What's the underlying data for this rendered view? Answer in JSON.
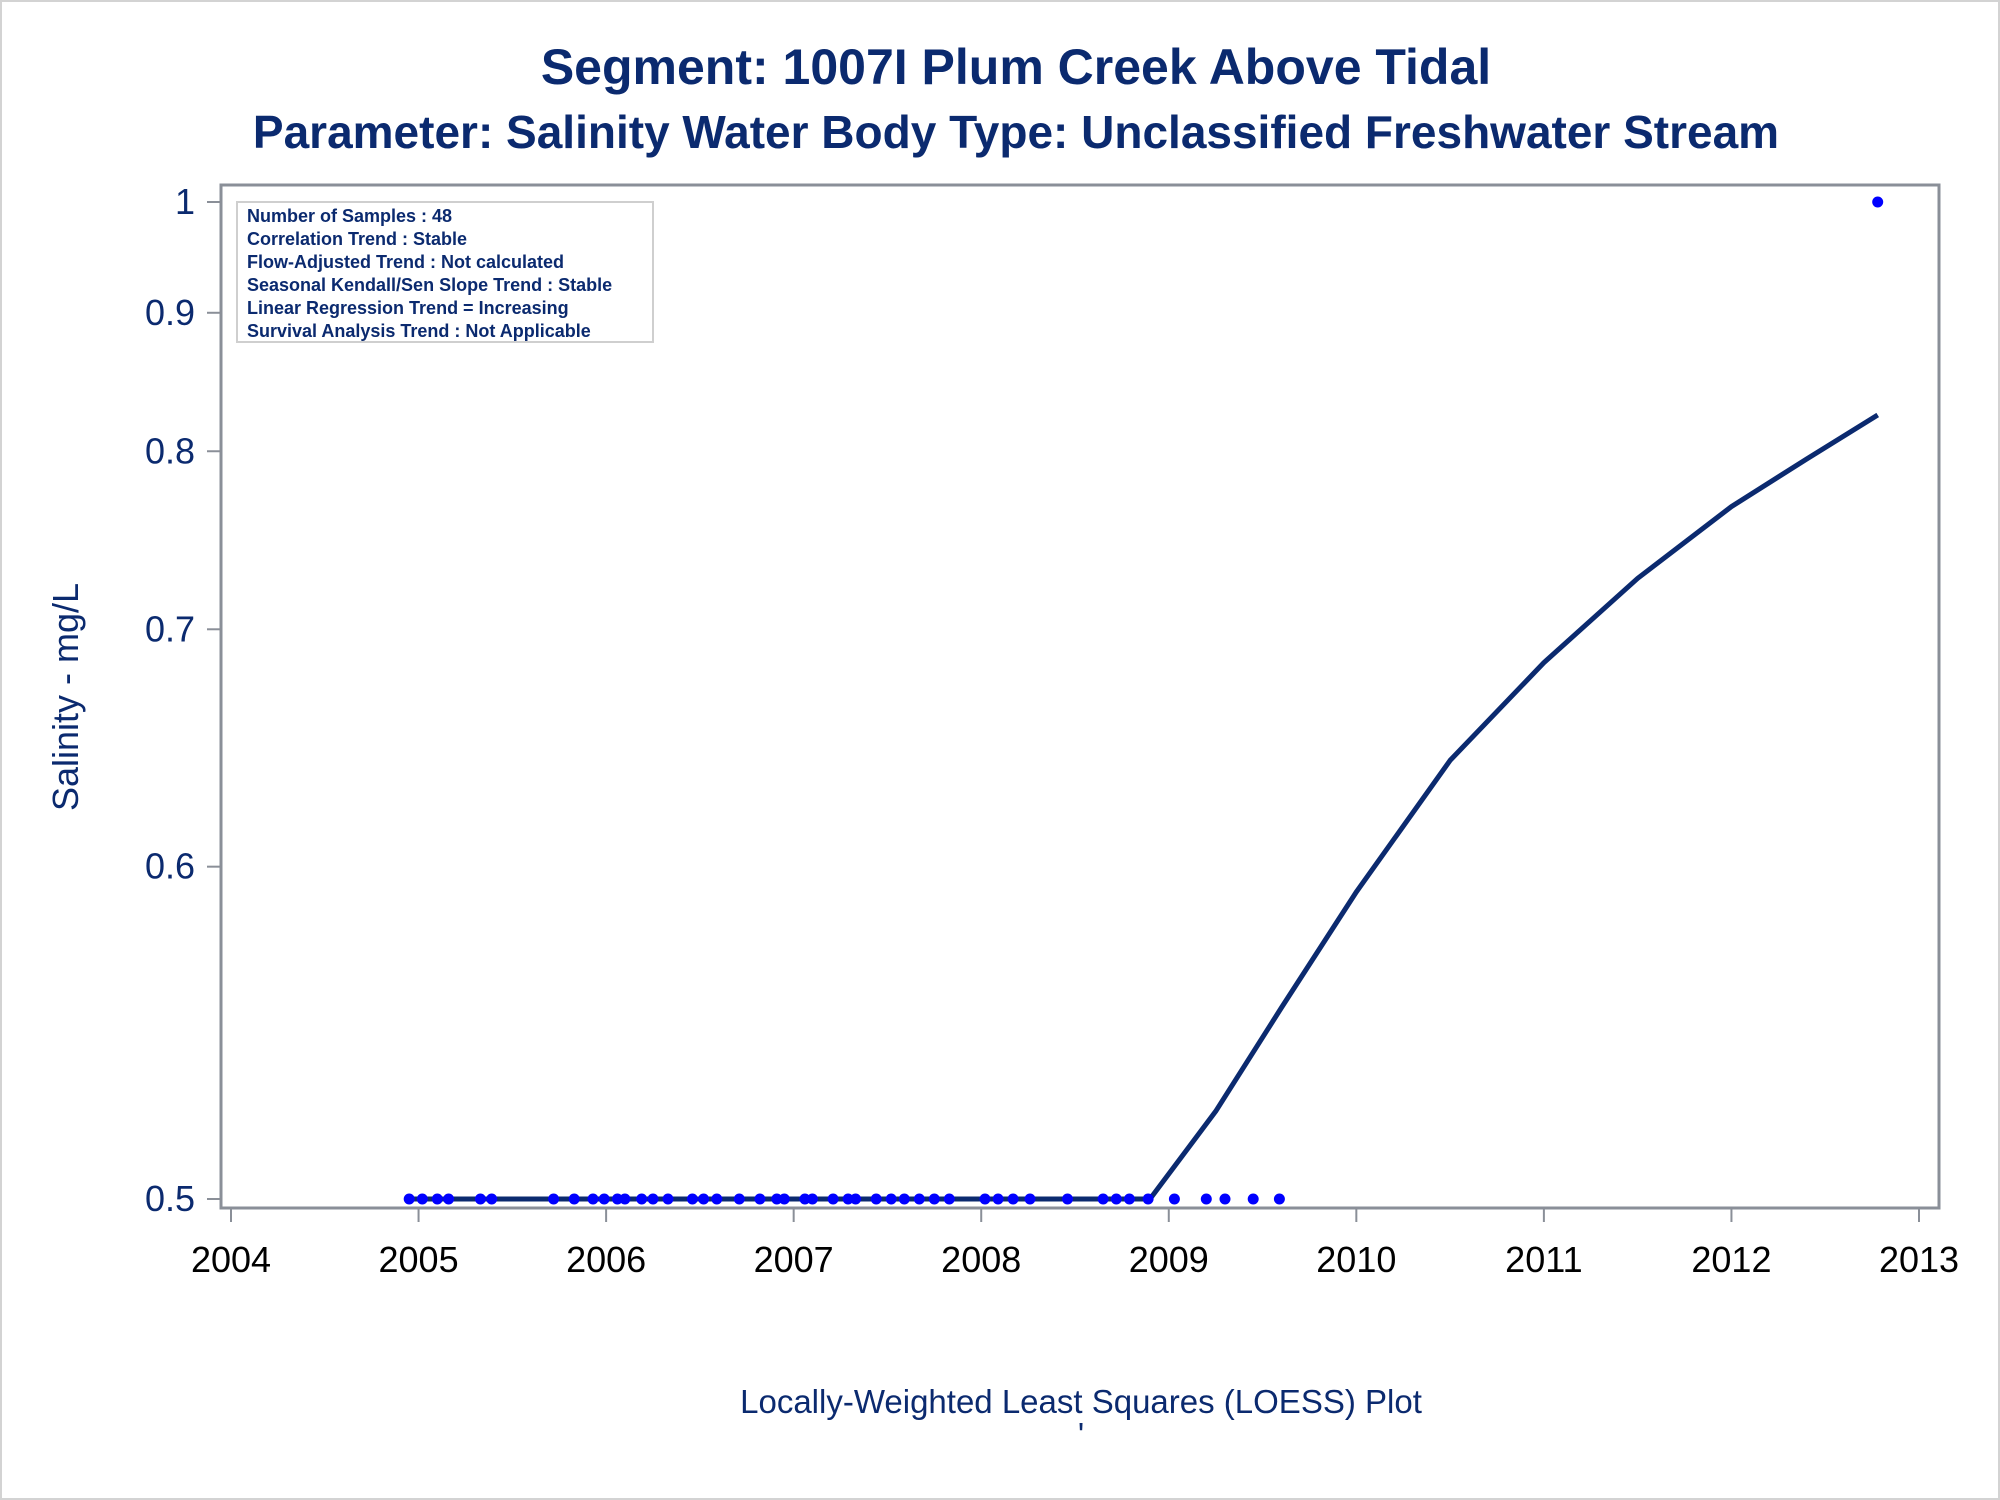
{
  "chart_data": {
    "type": "scatter",
    "title": "Segment: 1007I  Plum Creek Above Tidal",
    "subtitle": "Parameter: Salinity   Water Body Type: Unclassified Freshwater Stream",
    "xlabel": "Locally-Weighted Least Squares (LOESS) Plot",
    "ylabel": "Salinity - mg/L",
    "footnote": "'",
    "x_ticks": [
      "2004",
      "2005",
      "2006",
      "2007",
      "2008",
      "2009",
      "2010",
      "2011",
      "2012",
      "2013"
    ],
    "y_ticks": [
      "0.5",
      "0.6",
      "0.7",
      "0.8",
      "0.9",
      "1"
    ],
    "x_range": [
      2004,
      2013
    ],
    "y_range": [
      0.5,
      1.0
    ],
    "y_scale": "reciprocal",
    "legend_placement": "top-left",
    "grid": false,
    "stats_box": [
      "Number of Samples : 48",
      "Correlation Trend : Stable",
      "Flow-Adjusted Trend : Not calculated",
      "Seasonal Kendall/Sen Slope Trend : Stable",
      "Linear Regression Trend = Increasing",
      "Survival Analysis Trend : Not Applicable"
    ],
    "series": [
      {
        "type": "scatter",
        "color": "#0000ff",
        "points": [
          [
            2004.95,
            0.5
          ],
          [
            2005.02,
            0.5
          ],
          [
            2005.1,
            0.5
          ],
          [
            2005.16,
            0.5
          ],
          [
            2005.33,
            0.5
          ],
          [
            2005.39,
            0.5
          ],
          [
            2005.72,
            0.5
          ],
          [
            2005.83,
            0.5
          ],
          [
            2005.93,
            0.5
          ],
          [
            2005.99,
            0.5
          ],
          [
            2006.06,
            0.5
          ],
          [
            2006.1,
            0.5
          ],
          [
            2006.19,
            0.5
          ],
          [
            2006.25,
            0.5
          ],
          [
            2006.33,
            0.5
          ],
          [
            2006.46,
            0.5
          ],
          [
            2006.52,
            0.5
          ],
          [
            2006.59,
            0.5
          ],
          [
            2006.71,
            0.5
          ],
          [
            2006.82,
            0.5
          ],
          [
            2006.91,
            0.5
          ],
          [
            2006.95,
            0.5
          ],
          [
            2007.06,
            0.5
          ],
          [
            2007.1,
            0.5
          ],
          [
            2007.21,
            0.5
          ],
          [
            2007.29,
            0.5
          ],
          [
            2007.33,
            0.5
          ],
          [
            2007.44,
            0.5
          ],
          [
            2007.52,
            0.5
          ],
          [
            2007.59,
            0.5
          ],
          [
            2007.67,
            0.5
          ],
          [
            2007.75,
            0.5
          ],
          [
            2007.83,
            0.5
          ],
          [
            2008.02,
            0.5
          ],
          [
            2008.09,
            0.5
          ],
          [
            2008.17,
            0.5
          ],
          [
            2008.26,
            0.5
          ],
          [
            2008.46,
            0.5
          ],
          [
            2008.65,
            0.5
          ],
          [
            2008.72,
            0.5
          ],
          [
            2008.79,
            0.5
          ],
          [
            2008.89,
            0.5
          ],
          [
            2009.03,
            0.5
          ],
          [
            2009.2,
            0.5
          ],
          [
            2009.3,
            0.5
          ],
          [
            2009.45,
            0.5
          ],
          [
            2009.59,
            0.5
          ],
          [
            2012.78,
            1.0
          ]
        ]
      },
      {
        "type": "line",
        "color": "#0b2a6f",
        "points": [
          [
            2004.95,
            0.5
          ],
          [
            2008.9,
            0.5
          ],
          [
            2009.25,
            0.523
          ],
          [
            2009.6,
            0.553
          ],
          [
            2010.0,
            0.591
          ],
          [
            2010.5,
            0.641
          ],
          [
            2011.0,
            0.684
          ],
          [
            2011.5,
            0.726
          ],
          [
            2012.0,
            0.766
          ],
          [
            2012.4,
            0.795
          ],
          [
            2012.78,
            0.824
          ]
        ]
      }
    ]
  }
}
